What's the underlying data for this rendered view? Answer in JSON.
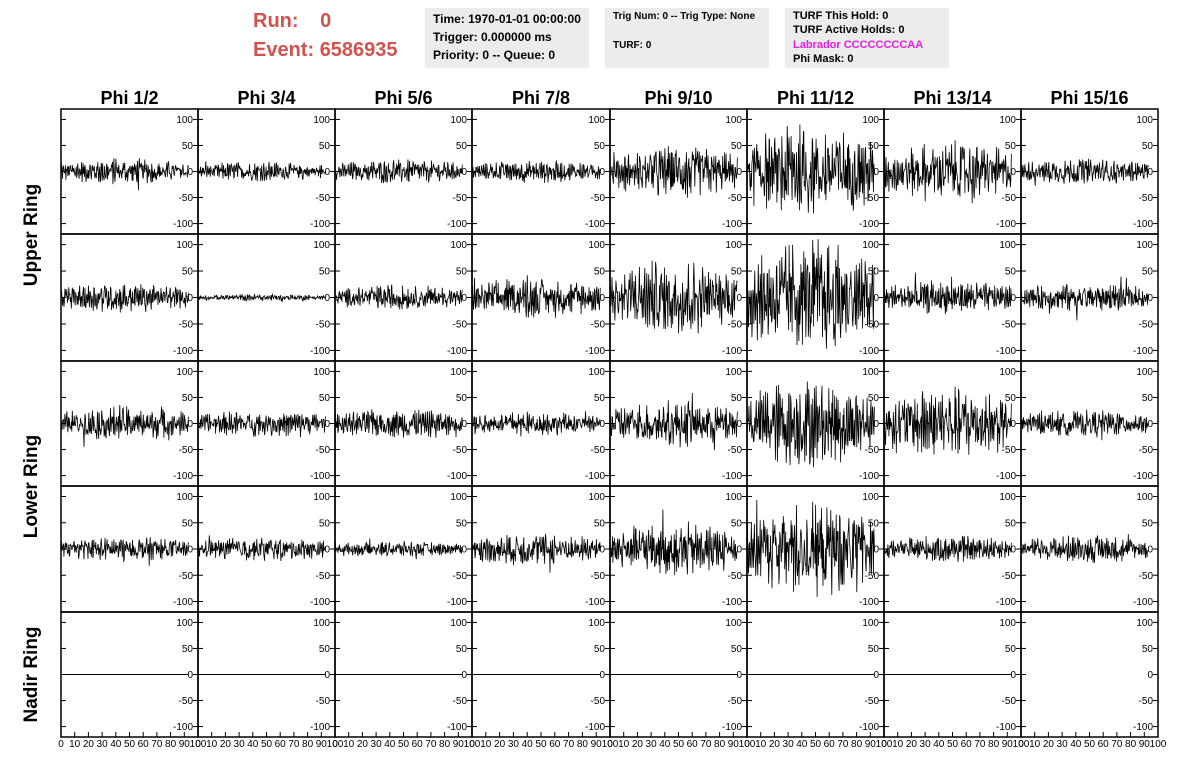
{
  "header": {
    "run_label": "Run:",
    "run_value": "0",
    "event_label": "Event:",
    "event_value": "6586935",
    "time_line": "Time: 1970-01-01 00:00:00",
    "trigger_line": "Trigger: 0.000000 ms",
    "priority_line": "Priority: 0 -- Queue: 0",
    "trig_line": "Trig Num: 0 -- Trig Type: None",
    "turf_line": "TURF: 0",
    "turf_hold_line": "TURF This Hold: 0",
    "turf_active_line": "TURF Active Holds: 0",
    "labrador_line": "Labrador CCCCCCCCAA",
    "phi_mask_line": "Phi Mask: 0",
    "labrador_color": "#e020e0"
  },
  "chart_data": {
    "type": "line",
    "columns": [
      "Phi 1/2",
      "Phi 3/4",
      "Phi 5/6",
      "Phi 7/8",
      "Phi 9/10",
      "Phi 11/12",
      "Phi 13/14",
      "Phi 15/16"
    ],
    "rings": [
      "Upper Ring",
      "Lower Ring",
      "Nadir Ring"
    ],
    "rows_per_ring": [
      2,
      2,
      1
    ],
    "xlim": [
      0,
      100
    ],
    "ylim": [
      -120,
      120
    ],
    "y_ticks": [
      -100,
      -50,
      0,
      50,
      100
    ],
    "x_ticks": [
      0,
      10,
      20,
      30,
      40,
      50,
      60,
      70,
      80,
      90,
      100
    ],
    "x_tick_labels": [
      "0",
      "10",
      "20",
      "30",
      "40",
      "50",
      "60",
      "70",
      "80",
      "90",
      "100"
    ],
    "waveform_x_range": [
      0,
      93
    ],
    "amplitude_envelope": [
      [
        20,
        15,
        18,
        17,
        38,
        70,
        45,
        20
      ],
      [
        22,
        5,
        18,
        30,
        55,
        85,
        25,
        22
      ],
      [
        25,
        20,
        22,
        18,
        35,
        65,
        55,
        20
      ],
      [
        18,
        18,
        12,
        25,
        40,
        70,
        20,
        20
      ],
      [
        0,
        0,
        0,
        0,
        0,
        0,
        0,
        null
      ]
    ],
    "nadir_flat_value": 0
  }
}
